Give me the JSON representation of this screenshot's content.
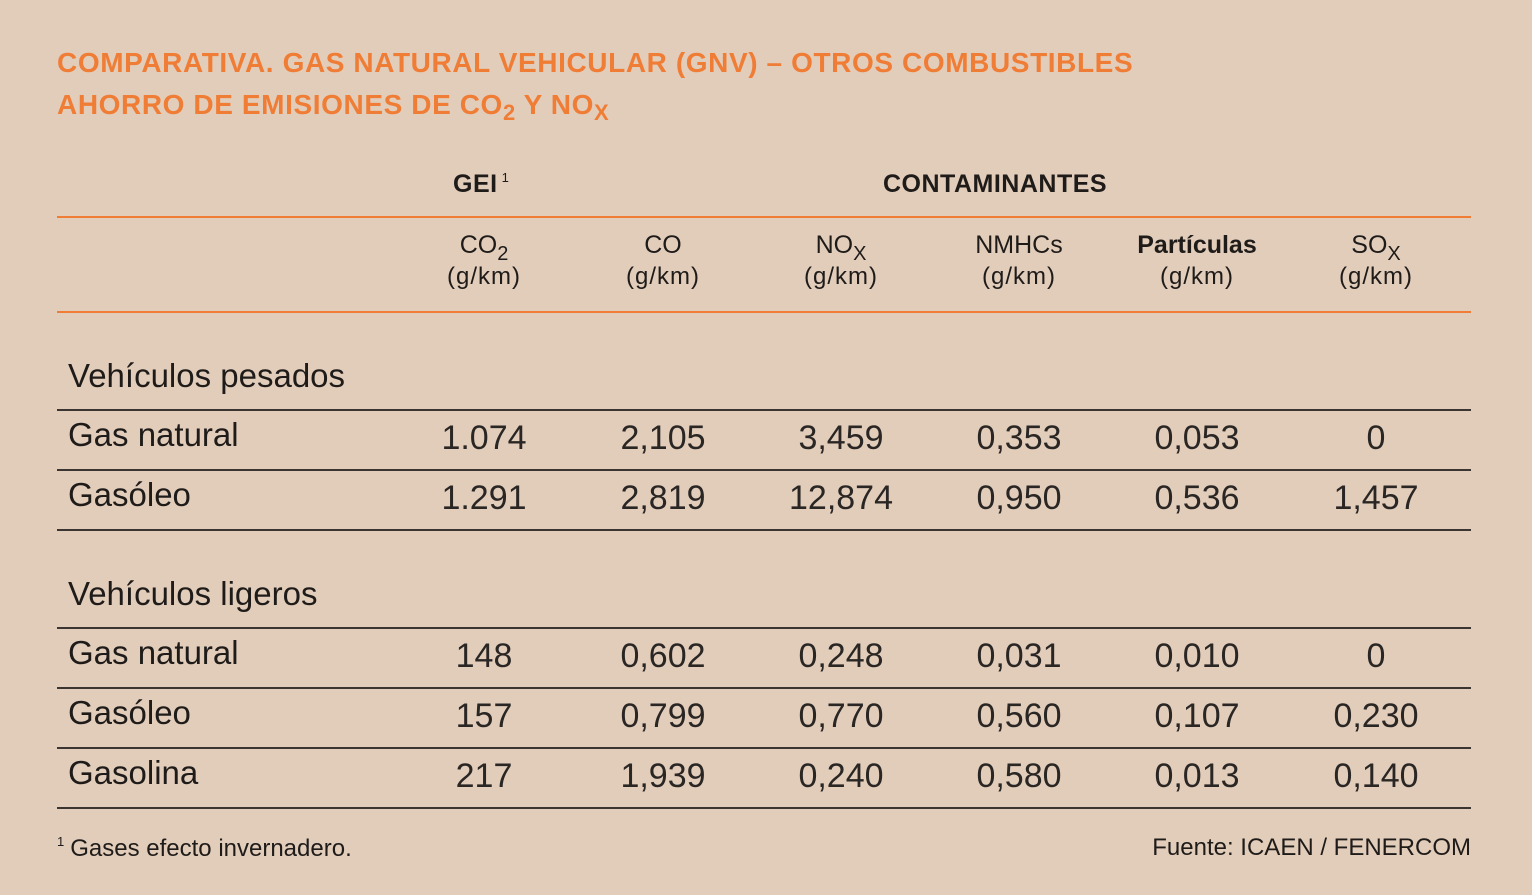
{
  "title": {
    "line1": "COMPARATIVA. GAS NATURAL VEHICULAR (GNV) – OTROS COMBUSTIBLES",
    "line2_prefix": "AHORRO DE EMISIONES DE CO",
    "line2_sub1": "2",
    "line2_mid": " Y NO",
    "line2_sub2": "X"
  },
  "groups": {
    "gei": "GEI",
    "gei_note": "1",
    "contaminantes": "CONTAMINANTES"
  },
  "columns": [
    {
      "name": "CO",
      "sub": "2",
      "unit": "(g/km)"
    },
    {
      "name": "CO",
      "sub": "",
      "unit": "(g/km)"
    },
    {
      "name": "NO",
      "sub": "X",
      "unit": "(g/km)"
    },
    {
      "name": "NMHCs",
      "sub": "",
      "unit": "(g/km)"
    },
    {
      "name": "Partículas",
      "sub": "",
      "unit": "(g/km)"
    },
    {
      "name": "SO",
      "sub": "X",
      "unit": "(g/km)"
    }
  ],
  "sections": [
    {
      "title": "Vehículos pesados",
      "rows": [
        {
          "label": "Gas natural",
          "values": [
            "1.074",
            "2,105",
            "3,459",
            "0,353",
            "0,053",
            "0"
          ]
        },
        {
          "label": "Gasóleo",
          "values": [
            "1.291",
            "2,819",
            "12,874",
            "0,950",
            "0,536",
            "1,457"
          ]
        }
      ]
    },
    {
      "title": "Vehículos ligeros",
      "rows": [
        {
          "label": "Gas natural",
          "values": [
            "148",
            "0,602",
            "0,248",
            "0,031",
            "0,010",
            "0"
          ]
        },
        {
          "label": "Gasóleo",
          "values": [
            "157",
            "0,799",
            "0,770",
            "0,560",
            "0,107",
            "0,230"
          ]
        },
        {
          "label": "Gasolina",
          "values": [
            "217",
            "1,939",
            "0,240",
            "0,580",
            "0,013",
            "0,140"
          ]
        }
      ]
    }
  ],
  "footnote": {
    "mark": "1",
    "text": "Gases efecto invernadero."
  },
  "source": "Fuente: ICAEN / FENERCOM"
}
